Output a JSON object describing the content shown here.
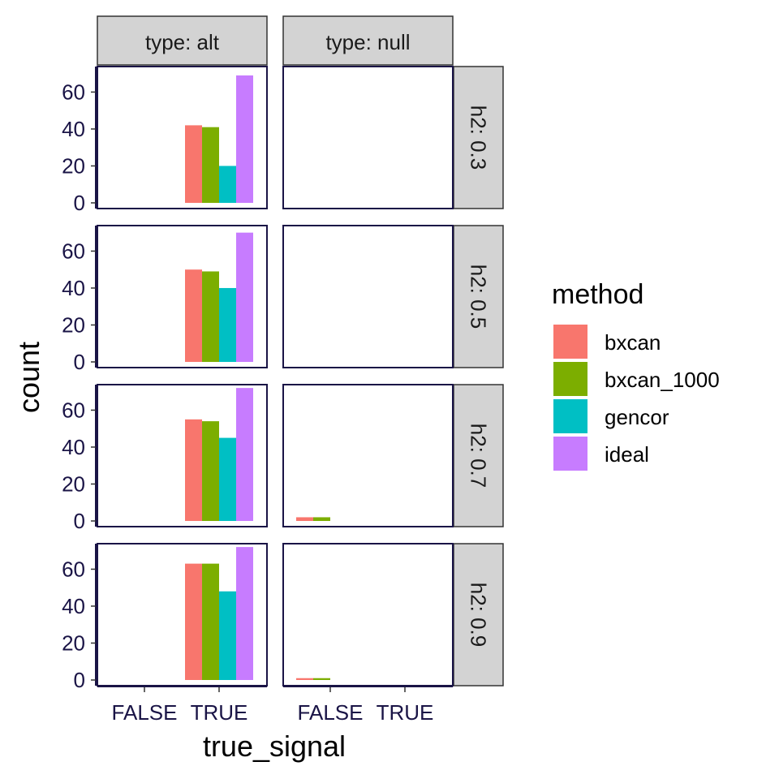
{
  "chart_data": {
    "type": "bar",
    "xlabel": "true_signal",
    "ylabel": "count",
    "x_categories": [
      "FALSE",
      "TRUE"
    ],
    "ylim": [
      0,
      73
    ],
    "y_ticks": [
      0,
      20,
      40,
      60
    ],
    "facet_cols": {
      "variable": "type",
      "labels": [
        "type: alt",
        "type: null"
      ],
      "values": [
        "alt",
        "null"
      ]
    },
    "facet_rows": {
      "variable": "h2",
      "labels": [
        "h2: 0.3",
        "h2: 0.5",
        "h2: 0.7",
        "h2: 0.9"
      ],
      "values": [
        "0.3",
        "0.5",
        "0.7",
        "0.9"
      ]
    },
    "legend": {
      "title": "method",
      "position": "right"
    },
    "series": [
      {
        "name": "bxcan",
        "color": "#F8766D"
      },
      {
        "name": "bxcan_1000",
        "color": "#7CAE00"
      },
      {
        "name": "gencor",
        "color": "#00BFC4"
      },
      {
        "name": "ideal",
        "color": "#C77CFF"
      }
    ],
    "panels": [
      {
        "type": "alt",
        "h2": "0.3",
        "bars": [
          {
            "true_signal": "TRUE",
            "method": "bxcan",
            "count": 42
          },
          {
            "true_signal": "TRUE",
            "method": "bxcan_1000",
            "count": 41
          },
          {
            "true_signal": "TRUE",
            "method": "gencor",
            "count": 20
          },
          {
            "true_signal": "TRUE",
            "method": "ideal",
            "count": 69
          }
        ]
      },
      {
        "type": "null",
        "h2": "0.3",
        "bars": []
      },
      {
        "type": "alt",
        "h2": "0.5",
        "bars": [
          {
            "true_signal": "TRUE",
            "method": "bxcan",
            "count": 50
          },
          {
            "true_signal": "TRUE",
            "method": "bxcan_1000",
            "count": 49
          },
          {
            "true_signal": "TRUE",
            "method": "gencor",
            "count": 40
          },
          {
            "true_signal": "TRUE",
            "method": "ideal",
            "count": 70
          }
        ]
      },
      {
        "type": "null",
        "h2": "0.5",
        "bars": []
      },
      {
        "type": "alt",
        "h2": "0.7",
        "bars": [
          {
            "true_signal": "TRUE",
            "method": "bxcan",
            "count": 55
          },
          {
            "true_signal": "TRUE",
            "method": "bxcan_1000",
            "count": 54
          },
          {
            "true_signal": "TRUE",
            "method": "gencor",
            "count": 45
          },
          {
            "true_signal": "TRUE",
            "method": "ideal",
            "count": 72
          }
        ]
      },
      {
        "type": "null",
        "h2": "0.7",
        "bars": [
          {
            "true_signal": "FALSE",
            "method": "bxcan",
            "count": 2
          },
          {
            "true_signal": "FALSE",
            "method": "bxcan_1000",
            "count": 2
          }
        ]
      },
      {
        "type": "alt",
        "h2": "0.9",
        "bars": [
          {
            "true_signal": "TRUE",
            "method": "bxcan",
            "count": 63
          },
          {
            "true_signal": "TRUE",
            "method": "bxcan_1000",
            "count": 63
          },
          {
            "true_signal": "TRUE",
            "method": "gencor",
            "count": 48
          },
          {
            "true_signal": "TRUE",
            "method": "ideal",
            "count": 72
          }
        ]
      },
      {
        "type": "null",
        "h2": "0.9",
        "bars": [
          {
            "true_signal": "FALSE",
            "method": "bxcan",
            "count": 1
          },
          {
            "true_signal": "FALSE",
            "method": "bxcan_1000",
            "count": 1
          }
        ]
      }
    ]
  }
}
